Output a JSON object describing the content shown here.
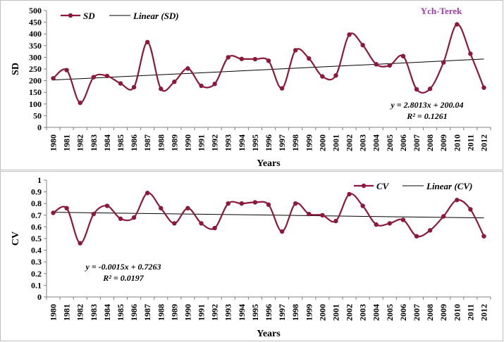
{
  "station": "Ych-Terek",
  "colors": {
    "series": "#8b1a3a",
    "trend": "#000000",
    "station": "#9b3fa0",
    "frame": "#bfbfbf"
  },
  "chart_data": [
    {
      "id": "sd",
      "type": "line",
      "title": "",
      "xlabel": "Years",
      "ylabel": "SD",
      "legend_position": "top-left",
      "ylim": [
        0,
        500
      ],
      "yticks": [
        0,
        50,
        100,
        150,
        200,
        250,
        300,
        350,
        400,
        450,
        500
      ],
      "x": [
        "1980",
        "1981",
        "1982",
        "1983",
        "1984",
        "1985",
        "1986",
        "1987",
        "1988",
        "1989",
        "1990",
        "1991",
        "1992",
        "1993",
        "1994",
        "1995",
        "1996",
        "1997",
        "1998",
        "1999",
        "2000",
        "2001",
        "2002",
        "2003",
        "2004",
        "2005",
        "2006",
        "2007",
        "2008",
        "2009",
        "2010",
        "2011",
        "2012"
      ],
      "series": [
        {
          "name": "SD",
          "values": [
            210,
            245,
            105,
            215,
            220,
            188,
            172,
            365,
            165,
            195,
            252,
            178,
            186,
            300,
            293,
            292,
            285,
            167,
            330,
            295,
            218,
            222,
            397,
            352,
            270,
            265,
            305,
            163,
            165,
            278,
            441,
            315,
            170
          ]
        }
      ],
      "trend": {
        "name": "Linear (SD)",
        "slope": 2.8013,
        "intercept": 200.04
      },
      "equation": "y = 2.8013x + 200.04",
      "r2": "R² = 0.1261"
    },
    {
      "id": "cv",
      "type": "line",
      "title": "",
      "xlabel": "Years",
      "ylabel": "CV",
      "legend_position": "top-right",
      "ylim": [
        0,
        1
      ],
      "yticks": [
        "0",
        "0.1",
        "0.2",
        "0.3",
        "0.4",
        "0.5",
        "0.6",
        "0.7",
        "0.8",
        "0.9",
        "1"
      ],
      "x": [
        "1980",
        "1981",
        "1982",
        "1983",
        "1984",
        "1985",
        "1986",
        "1987",
        "1988",
        "1989",
        "1990",
        "1991",
        "1992",
        "1993",
        "1994",
        "1995",
        "1996",
        "1997",
        "1998",
        "1999",
        "2000",
        "2001",
        "2002",
        "2003",
        "2004",
        "2005",
        "2006",
        "2007",
        "2008",
        "2009",
        "2010",
        "2011",
        "2012"
      ],
      "series": [
        {
          "name": "CV",
          "values": [
            0.72,
            0.76,
            0.46,
            0.71,
            0.78,
            0.67,
            0.68,
            0.89,
            0.76,
            0.63,
            0.76,
            0.63,
            0.59,
            0.8,
            0.8,
            0.81,
            0.79,
            0.56,
            0.8,
            0.71,
            0.7,
            0.65,
            0.88,
            0.78,
            0.62,
            0.63,
            0.66,
            0.52,
            0.57,
            0.69,
            0.83,
            0.75,
            0.52
          ]
        }
      ],
      "trend": {
        "name": "Linear (CV)",
        "slope": -0.0015,
        "intercept": 0.7263
      },
      "equation": "y = -0.0015x + 0.7263",
      "r2": "R² = 0.0197"
    }
  ]
}
